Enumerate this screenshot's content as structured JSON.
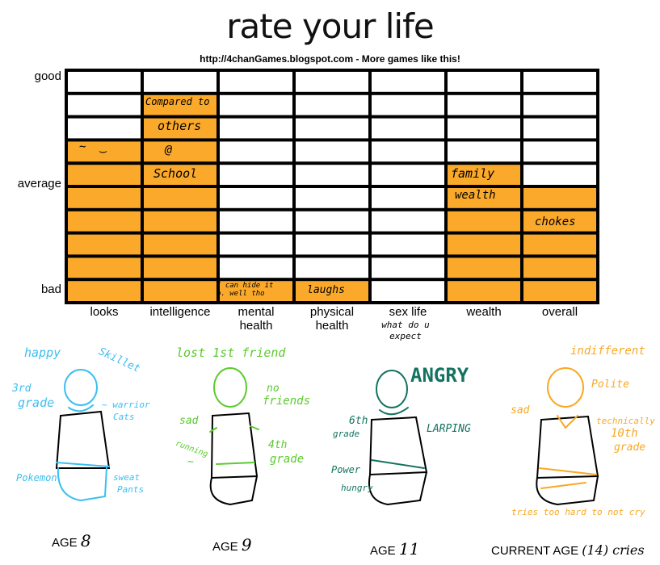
{
  "title": "rate your life",
  "url": "http://4chanGames.blogspot.com - More games like this!",
  "colors": {
    "fill": "#FBA92A",
    "grid": "#000000",
    "age8": "#3BBEF0",
    "age9": "#5BCB2E",
    "age11": "#137360",
    "current": "#F9A825"
  },
  "chart_data": {
    "type": "bar",
    "title": "rate your life",
    "categories": [
      "looks",
      "intelligence",
      "mental health",
      "physical health",
      "sex life",
      "wealth",
      "overall"
    ],
    "values": [
      7,
      9,
      1,
      1,
      0,
      6,
      5
    ],
    "ylim": [
      0,
      10
    ],
    "yticks": [
      "good",
      "average",
      "bad"
    ],
    "grid": true,
    "annotations": {
      "looks": [
        "~͡ ‿"
      ],
      "intelligence": [
        "Compared to",
        "others",
        "@",
        "School"
      ],
      "mental": [
        "I can hide it",
        "p. well tho"
      ],
      "physical": [
        "laughs"
      ],
      "sexlife": [
        "what do u",
        "expect"
      ],
      "wealth": [
        "family",
        "wealth"
      ],
      "overall": [
        "chokes"
      ]
    }
  },
  "xlabels": [
    "looks",
    "intelligence",
    "mental\nhealth",
    "physical\nhealth",
    "sex life",
    "wealth",
    "overall"
  ],
  "figures": [
    {
      "age_label": "AGE",
      "age": "8",
      "notes": [
        "happy",
        "Skillet",
        "3rd",
        "grade",
        "~ warrior",
        "Cats",
        "Pokemon",
        "sweat",
        "Pants"
      ]
    },
    {
      "age_label": "AGE",
      "age": "9",
      "notes": [
        "lost 1st friend",
        "no",
        "friends",
        "sad",
        "running",
        "~",
        "4th",
        "grade"
      ]
    },
    {
      "age_label": "AGE",
      "age": "11",
      "notes": [
        "ANGRY",
        "6th",
        "grade",
        "LARPING",
        "Power",
        "hungry"
      ]
    },
    {
      "age_label": "CURRENT AGE",
      "age": "(14) cries",
      "notes": [
        "indifferent",
        "Polite",
        "sad",
        "technically",
        "10th",
        "grade",
        "tries too hard to not cry"
      ]
    }
  ]
}
